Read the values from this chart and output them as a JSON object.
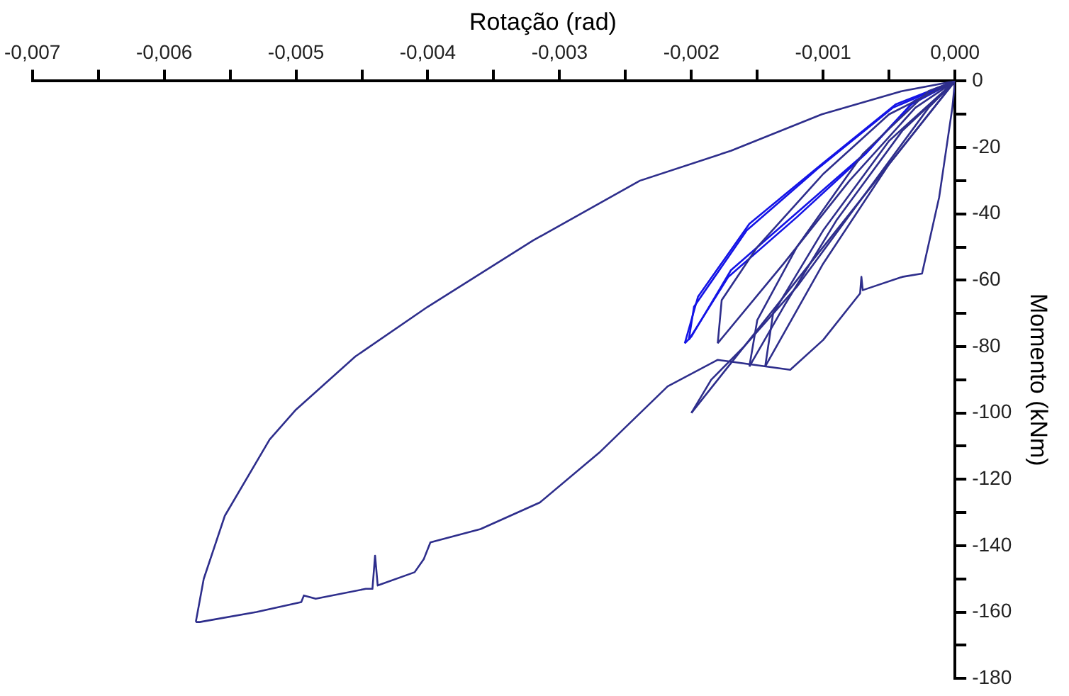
{
  "chart_data": {
    "type": "line",
    "title": "Rotação (rad)",
    "ylabel": "Momento (kNm)",
    "xlim": [
      -0.007,
      0.0
    ],
    "ylim": [
      -180,
      0
    ],
    "xticks": [
      {
        "value": -0.007,
        "label": "-0,007"
      },
      {
        "value": -0.0065,
        "label": null
      },
      {
        "value": -0.006,
        "label": "-0,006"
      },
      {
        "value": -0.0055,
        "label": null
      },
      {
        "value": -0.005,
        "label": "-0,005"
      },
      {
        "value": -0.0045,
        "label": null
      },
      {
        "value": -0.004,
        "label": "-0,004"
      },
      {
        "value": -0.0035,
        "label": null
      },
      {
        "value": -0.003,
        "label": "-0,003"
      },
      {
        "value": -0.0025,
        "label": null
      },
      {
        "value": -0.002,
        "label": "-0,002"
      },
      {
        "value": -0.0015,
        "label": null
      },
      {
        "value": -0.001,
        "label": "-0,001"
      },
      {
        "value": -0.0005,
        "label": null
      },
      {
        "value": 0.0,
        "label": "0,000"
      }
    ],
    "yticks": [
      0,
      {
        "value": -10,
        "label": null
      },
      -20,
      {
        "value": -30,
        "label": null
      },
      -40,
      {
        "value": -50,
        "label": null
      },
      -60,
      {
        "value": -70,
        "label": null
      },
      -80,
      {
        "value": -90,
        "label": null
      },
      -100,
      {
        "value": -110,
        "label": null
      },
      -120,
      {
        "value": -130,
        "label": null
      },
      -140,
      {
        "value": -150,
        "label": null
      },
      -160,
      {
        "value": -170,
        "label": null
      },
      -180
    ],
    "series": [
      {
        "color": "#2e2e8c",
        "x": [
          0,
          -0.0003,
          -0.0008,
          -0.0013,
          -0.0018
        ],
        "values": [
          0,
          -8,
          -30,
          -55,
          -79
        ]
      },
      {
        "color": "#2e2e8c",
        "x": [
          -0.0018,
          -0.00177,
          -0.0015,
          -0.001,
          -0.0005,
          0
        ],
        "values": [
          -79,
          -66,
          -50,
          -28,
          -10,
          0
        ]
      },
      {
        "color": "#2e2e8c",
        "x": [
          0,
          -0.0004,
          -0.0009,
          -0.0013,
          -0.00156
        ],
        "values": [
          0,
          -15,
          -42,
          -68,
          -86
        ]
      },
      {
        "color": "#2e2e8c",
        "x": [
          -0.00156,
          -0.0015,
          -0.0012,
          -0.0007,
          -0.0002,
          0
        ],
        "values": [
          -86,
          -72,
          -50,
          -22,
          -3,
          0
        ]
      },
      {
        "color": "#2e2e8c",
        "x": [
          0,
          -0.0005,
          -0.001,
          -0.00144
        ],
        "values": [
          0,
          -25,
          -55,
          -86
        ]
      },
      {
        "color": "#2e2e8c",
        "x": [
          -0.00144,
          -0.00138,
          -0.001,
          -0.0005,
          0
        ],
        "values": [
          -86,
          -70,
          -45,
          -18,
          0
        ]
      },
      {
        "color": "#2e2e8c",
        "x": [
          0,
          -0.0006,
          -0.0012,
          -0.0017,
          -0.002
        ],
        "values": [
          0,
          -30,
          -60,
          -85,
          -100
        ]
      },
      {
        "color": "#2e2e8c",
        "x": [
          -0.002,
          -0.00185,
          -0.0016,
          -0.0012,
          -0.0007,
          -0.0002,
          0
        ],
        "values": [
          -100,
          -90,
          -80,
          -62,
          -35,
          -8,
          0
        ]
      },
      {
        "color": "#2e2e8c",
        "x": [
          0,
          -0.0004,
          -0.00101,
          -0.0017,
          -0.00239,
          -0.0032,
          -0.004,
          -0.00455,
          -0.005,
          -0.0052,
          -0.00554,
          -0.0057,
          -0.00576
        ],
        "values": [
          0,
          -3,
          -10,
          -21,
          -30,
          -48,
          -68,
          -83,
          -99,
          -108,
          -131,
          -150,
          -163
        ]
      },
      {
        "color": "#2e2e8c",
        "x": [
          -0.00576,
          -0.00573,
          -0.0053,
          -0.00496,
          -0.00494,
          -0.00485,
          -0.00447,
          -0.00442,
          -0.0044,
          -0.00438,
          -0.0041,
          -0.00403,
          -0.00398,
          -0.0036,
          -0.00315,
          -0.0027,
          -0.00218,
          -0.0018,
          -0.00125,
          -0.001,
          -0.00072,
          -0.00071,
          -0.0007,
          -0.0004,
          -0.00025,
          -0.00012,
          -2e-05,
          0
        ],
        "values": [
          -163,
          -163,
          -160,
          -157,
          -155,
          -156,
          -153,
          -153,
          -143,
          -152,
          -148,
          -144,
          -139,
          -135,
          -127,
          -112,
          -92,
          -84,
          -87,
          -78,
          -64,
          -59,
          -63,
          -59,
          -58,
          -35,
          -8,
          0
        ]
      },
      {
        "color": "#1414e6",
        "x": [
          0,
          -0.00031,
          -0.00066,
          -0.00118,
          -0.0017,
          -0.002,
          -0.00205
        ],
        "values": [
          0,
          -6,
          -21,
          -39,
          -57,
          -77,
          -79
        ]
      },
      {
        "color": "#1414e6",
        "x": [
          -0.00205,
          -0.00195,
          -0.00156,
          -0.00101,
          -0.00045,
          0
        ],
        "values": [
          -79,
          -65,
          -43,
          -25,
          -7,
          0
        ]
      },
      {
        "color": "#1414e6",
        "x": [
          0,
          -0.00033,
          -0.00068,
          -0.0012,
          -0.00172,
          -0.00202
        ],
        "values": [
          0,
          -7,
          -22,
          -41,
          -59,
          -78
        ]
      },
      {
        "color": "#1414e6",
        "x": [
          -0.00202,
          -0.00198,
          -0.00158,
          -0.00103,
          -0.00047,
          0
        ],
        "values": [
          -78,
          -68,
          -45,
          -26,
          -8,
          0
        ]
      }
    ]
  }
}
